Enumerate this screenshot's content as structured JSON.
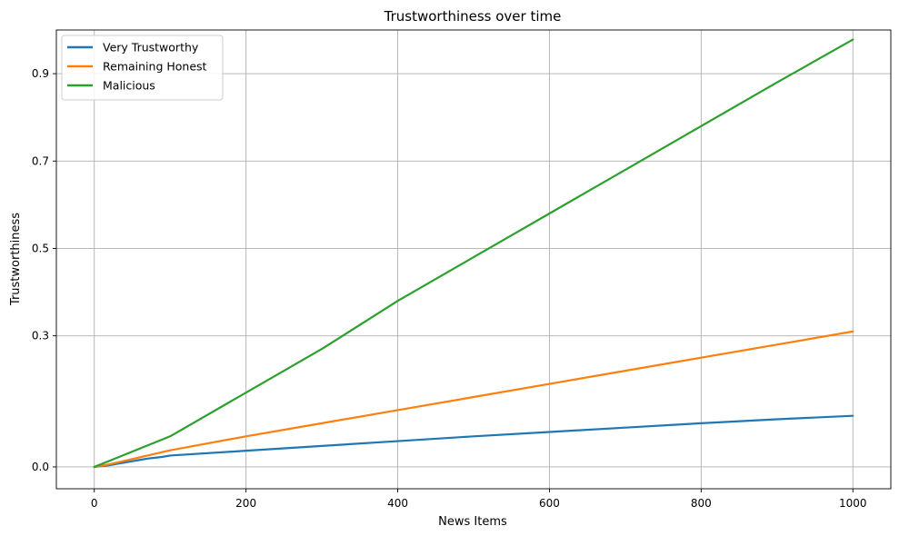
{
  "chart_data": {
    "type": "line",
    "title": "Trustworthiness over time",
    "xlabel": "News Items",
    "ylabel": "Trustworthiness",
    "xlim": [
      -50,
      1050
    ],
    "ylim": [
      -0.05,
      1.0
    ],
    "xticks": [
      0,
      200,
      400,
      600,
      800,
      1000
    ],
    "yticks": [
      0.0,
      0.3,
      0.5,
      0.7,
      0.9
    ],
    "ytick_labels": [
      "0.0",
      "0.3",
      "0.5",
      "0.7",
      "0.9"
    ],
    "grid": true,
    "legend_position": "top-left",
    "x": [
      0,
      10,
      20,
      30,
      40,
      50,
      60,
      70,
      80,
      90,
      100,
      200,
      300,
      400,
      500,
      600,
      700,
      800,
      900,
      1000
    ],
    "series": [
      {
        "name": "Very Trustworthy",
        "color": "#1f77b4",
        "values": [
          0.0,
          0.002,
          0.004,
          0.007,
          0.01,
          0.013,
          0.016,
          0.019,
          0.021,
          0.023,
          0.026,
          0.037,
          0.048,
          0.059,
          0.07,
          0.08,
          0.09,
          0.1,
          0.109,
          0.117
        ]
      },
      {
        "name": "Remaining Honest",
        "color": "#ff7f0e",
        "values": [
          0.0,
          0.003,
          0.006,
          0.01,
          0.014,
          0.018,
          0.022,
          0.026,
          0.03,
          0.034,
          0.038,
          0.07,
          0.1,
          0.13,
          0.16,
          0.19,
          0.22,
          0.25,
          0.28,
          0.31
        ]
      },
      {
        "name": "Malicious",
        "color": "#2ca02c",
        "values": [
          0.0,
          0.007,
          0.014,
          0.021,
          0.028,
          0.035,
          0.042,
          0.049,
          0.056,
          0.063,
          0.07,
          0.17,
          0.27,
          0.38,
          0.48,
          0.58,
          0.68,
          0.78,
          0.88,
          0.978
        ]
      }
    ]
  }
}
